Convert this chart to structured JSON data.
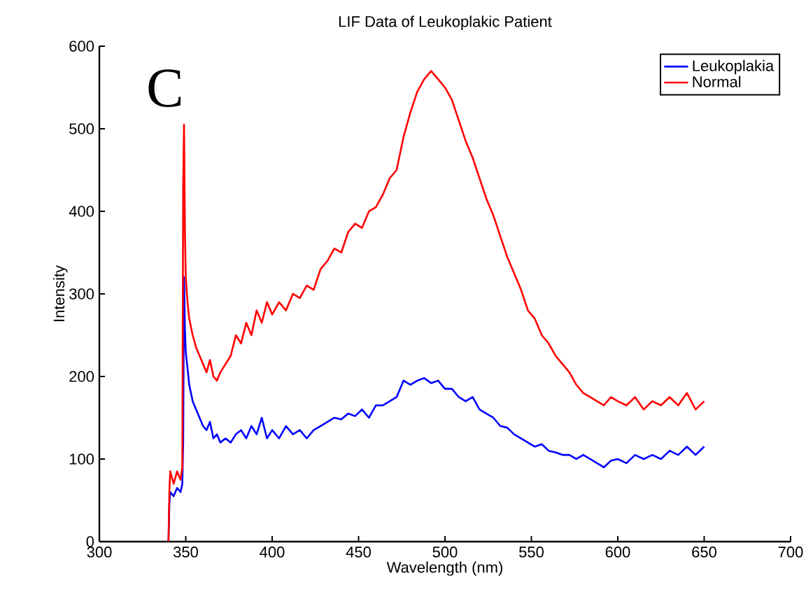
{
  "chart_data": {
    "type": "line",
    "title": "LIF Data of Leukoplakic Patient",
    "xlabel": "Wavelength (nm)",
    "ylabel": "Intensity",
    "annotations": [
      "C"
    ],
    "xlim": [
      300,
      700
    ],
    "xticks": [
      300,
      350,
      400,
      450,
      500,
      550,
      600,
      650,
      700
    ],
    "ylim": [
      0,
      600
    ],
    "yticks": [
      0,
      100,
      200,
      300,
      400,
      500,
      600
    ],
    "grid": false,
    "legend": "top right",
    "marker": "none",
    "line_style": "solid",
    "x": [
      340,
      340.5,
      341,
      343,
      345,
      347,
      348,
      348.5,
      349,
      349.5,
      350,
      351,
      352,
      354,
      356,
      358,
      360,
      362,
      364,
      366,
      368,
      370,
      373,
      376,
      379,
      382,
      385,
      388,
      391,
      394,
      397,
      400,
      404,
      408,
      412,
      416,
      420,
      424,
      428,
      432,
      436,
      440,
      444,
      448,
      452,
      456,
      460,
      464,
      468,
      472,
      476,
      480,
      484,
      488,
      492,
      496,
      500,
      504,
      508,
      512,
      516,
      520,
      524,
      528,
      532,
      536,
      540,
      544,
      548,
      552,
      556,
      560,
      564,
      568,
      572,
      576,
      580,
      584,
      588,
      592,
      596,
      600,
      605,
      610,
      615,
      620,
      625,
      630,
      635,
      640,
      645,
      650
    ],
    "series": [
      {
        "name": "Leukoplakia",
        "color": "#0000ff",
        "values": [
          0,
          45,
          60,
          55,
          65,
          60,
          70,
          120,
          320,
          260,
          230,
          210,
          190,
          170,
          160,
          150,
          140,
          135,
          145,
          125,
          130,
          120,
          125,
          120,
          130,
          135,
          125,
          140,
          130,
          150,
          125,
          135,
          125,
          140,
          130,
          135,
          125,
          135,
          140,
          145,
          150,
          148,
          155,
          152,
          160,
          150,
          165,
          165,
          170,
          175,
          195,
          190,
          195,
          198,
          192,
          195,
          185,
          185,
          175,
          170,
          175,
          160,
          155,
          150,
          140,
          138,
          130,
          125,
          120,
          115,
          118,
          110,
          108,
          105,
          105,
          100,
          105,
          100,
          95,
          90,
          98,
          100,
          95,
          105,
          100,
          105,
          100,
          110,
          105,
          115,
          105,
          115
        ]
      },
      {
        "name": "Normal",
        "color": "#ff0000",
        "values": [
          0,
          60,
          85,
          70,
          85,
          75,
          90,
          430,
          505,
          380,
          320,
          290,
          270,
          250,
          235,
          225,
          215,
          205,
          220,
          200,
          195,
          205,
          215,
          225,
          250,
          240,
          265,
          250,
          280,
          265,
          290,
          275,
          290,
          280,
          300,
          295,
          310,
          305,
          330,
          340,
          355,
          350,
          375,
          385,
          380,
          400,
          405,
          420,
          440,
          450,
          490,
          520,
          545,
          560,
          570,
          560,
          550,
          535,
          510,
          485,
          465,
          440,
          415,
          395,
          370,
          345,
          325,
          305,
          280,
          270,
          250,
          240,
          225,
          215,
          205,
          190,
          180,
          175,
          170,
          165,
          175,
          170,
          165,
          175,
          160,
          170,
          165,
          175,
          165,
          180,
          160,
          170
        ]
      }
    ]
  }
}
